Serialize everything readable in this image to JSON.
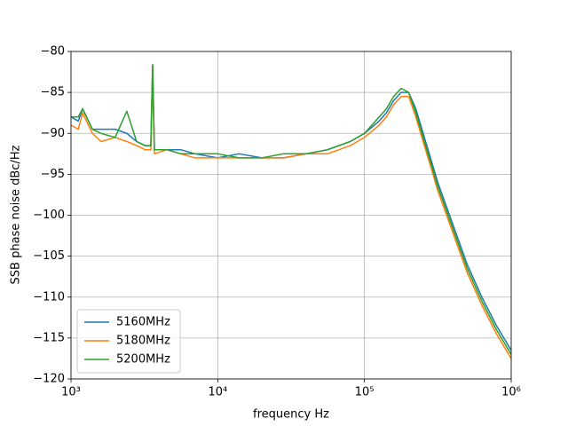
{
  "chart_data": {
    "type": "line",
    "xlabel": "frequency Hz",
    "ylabel": "SSB phase noise dBc/Hz",
    "xscale": "log",
    "grid": true,
    "legend": "lower left",
    "xlim": [
      1000,
      1000000
    ],
    "xticks": [
      {
        "value": 1000,
        "label": "10³"
      },
      {
        "value": 10000,
        "label": "10⁴"
      },
      {
        "value": 100000,
        "label": "10⁵"
      },
      {
        "value": 1000000,
        "label": "10⁶"
      }
    ],
    "ylim": [
      -120,
      -80
    ],
    "yticks": [
      {
        "value": -120,
        "label": "−120"
      },
      {
        "value": -115,
        "label": "−115"
      },
      {
        "value": -110,
        "label": "−110"
      },
      {
        "value": -105,
        "label": "−105"
      },
      {
        "value": -100,
        "label": "−100"
      },
      {
        "value": -95,
        "label": "−95"
      },
      {
        "value": -90,
        "label": "−90"
      },
      {
        "value": -85,
        "label": "−85"
      },
      {
        "value": -80,
        "label": "−80"
      }
    ],
    "x": [
      1000,
      1120,
      1200,
      1400,
      1600,
      2000,
      2400,
      2800,
      3200,
      3500,
      3600,
      3700,
      4500,
      5600,
      7000,
      10000,
      14000,
      20000,
      28000,
      40000,
      56000,
      80000,
      100000,
      126000,
      141000,
      158000,
      178000,
      200000,
      224000,
      251000,
      282000,
      316000,
      398000,
      501000,
      631000,
      794000,
      1000000
    ],
    "series": [
      {
        "name": "5160MHz",
        "color": "#1f77b4",
        "values": [
          -88,
          -88.5,
          -87,
          -89.5,
          -89.5,
          -89.5,
          -90,
          -91,
          -91.5,
          -91.5,
          -81.7,
          -92,
          -92,
          -92,
          -92.5,
          -93,
          -92.5,
          -93,
          -93,
          -92.5,
          -92,
          -91,
          -90,
          -88.5,
          -87.5,
          -86,
          -85,
          -85,
          -87,
          -90,
          -93,
          -96,
          -101,
          -106,
          -110,
          -113.5,
          -116.5
        ]
      },
      {
        "name": "5180MHz",
        "color": "#ff7f0e",
        "values": [
          -89,
          -89.5,
          -87.5,
          -90,
          -91,
          -90.5,
          -91,
          -91.5,
          -92,
          -92,
          -81.8,
          -92.5,
          -92,
          -92.5,
          -93,
          -93,
          -93,
          -93,
          -93,
          -92.5,
          -92.5,
          -91.5,
          -90.5,
          -89,
          -88,
          -86.5,
          -85.5,
          -85.5,
          -88,
          -91,
          -94,
          -97,
          -102,
          -107,
          -111,
          -114.5,
          -117.5
        ]
      },
      {
        "name": "5200MHz",
        "color": "#2ca02c",
        "values": [
          -88,
          -88,
          -87,
          -89.5,
          -90,
          -90.5,
          -87.3,
          -91,
          -91.5,
          -91.5,
          -81.6,
          -92,
          -92,
          -92.5,
          -92.5,
          -92.5,
          -93,
          -93,
          -92.5,
          -92.5,
          -92,
          -91,
          -90,
          -88,
          -87,
          -85.5,
          -84.5,
          -85,
          -87.5,
          -90.5,
          -93.5,
          -96.5,
          -101.5,
          -106.5,
          -110.5,
          -114,
          -117
        ]
      }
    ]
  }
}
